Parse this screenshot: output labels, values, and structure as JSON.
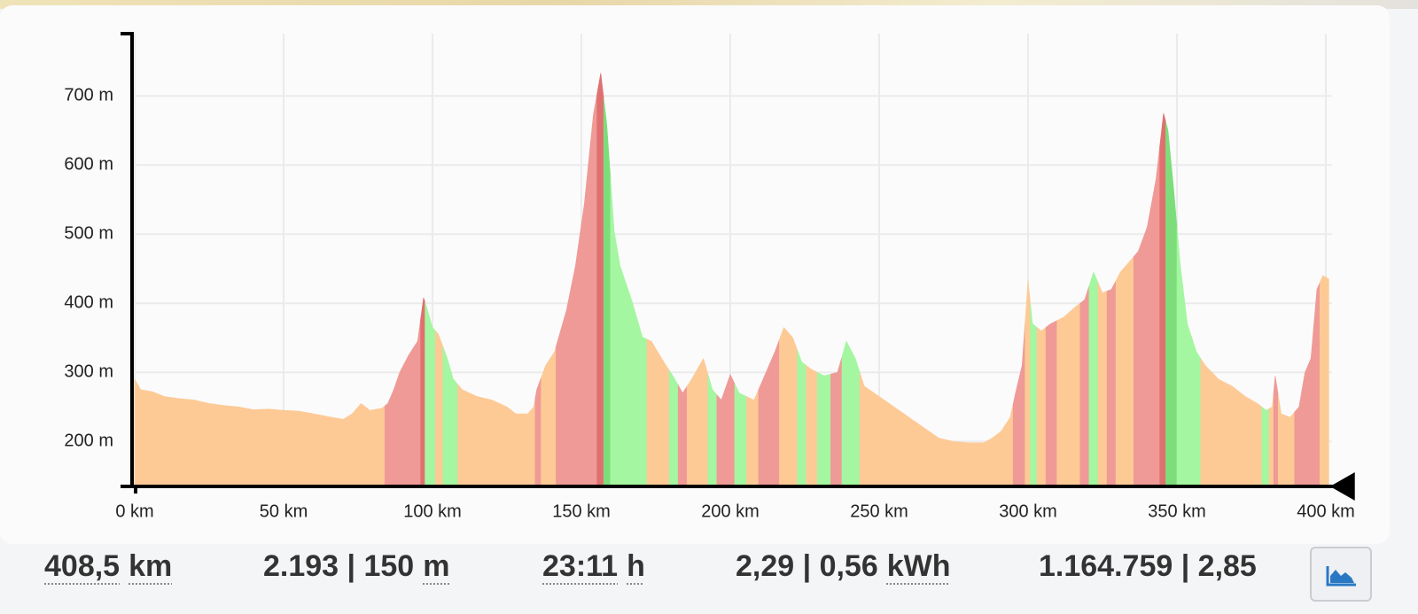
{
  "chart_data": {
    "type": "area",
    "x": [
      0,
      2,
      6,
      10,
      15,
      20,
      25,
      30,
      35,
      40,
      45,
      50,
      55,
      60,
      65,
      70,
      73,
      76,
      79,
      83,
      85,
      87,
      89,
      92,
      95,
      97,
      98,
      100,
      102,
      105,
      107,
      110,
      115,
      120,
      125,
      128,
      132,
      134,
      135,
      138,
      141,
      142,
      145,
      148,
      151,
      154,
      156.5,
      158.5,
      161,
      163,
      167,
      170.5,
      173.5,
      178,
      181,
      184,
      187,
      191,
      194,
      197,
      200,
      203,
      208,
      211,
      215,
      218,
      221,
      224,
      227,
      231.5,
      236,
      239,
      242,
      245,
      250,
      255,
      260,
      265,
      270,
      275,
      280,
      285,
      288,
      291,
      294,
      296,
      298,
      300,
      301.5,
      304.5,
      307.5,
      312,
      316,
      319,
      322,
      325,
      328,
      331,
      334,
      337,
      340,
      343,
      345.5,
      347,
      349,
      351,
      353.5,
      356.5,
      359.5,
      364,
      368.5,
      373,
      377,
      380,
      382,
      383,
      385,
      388,
      391,
      393,
      395,
      397,
      399,
      401
    ],
    "values": [
      290,
      275,
      272,
      265,
      262,
      260,
      255,
      252,
      250,
      246,
      247,
      245,
      244,
      240,
      236,
      232,
      240,
      255,
      245,
      248,
      255,
      275,
      300,
      325,
      345,
      408,
      395,
      365,
      355,
      320,
      290,
      275,
      265,
      260,
      250,
      240,
      240,
      250,
      275,
      310,
      330,
      345,
      390,
      454,
      544,
      672,
      733,
      660,
      505,
      454,
      403,
      351,
      345,
      313,
      293,
      270,
      290,
      320,
      275,
      260,
      297,
      270,
      260,
      290,
      330,
      365,
      350,
      315,
      305,
      295,
      300,
      345,
      320,
      280,
      265,
      250,
      235,
      220,
      205,
      200,
      198,
      198,
      205,
      215,
      235,
      274,
      310,
      433,
      370,
      360,
      370,
      380,
      395,
      405,
      445,
      415,
      420,
      445,
      460,
      475,
      510,
      580,
      675,
      650,
      560,
      460,
      370,
      330,
      310,
      290,
      280,
      265,
      255,
      245,
      250,
      295,
      240,
      235,
      250,
      300,
      320,
      420,
      440,
      435
    ],
    "colors": [
      "#fdca96",
      "#fdca96",
      "#fdca96",
      "#fdca96",
      "#fdca96",
      "#fdca96",
      "#fdca96",
      "#fdca96",
      "#fdca96",
      "#fdca96",
      "#fdca96",
      "#fdca96",
      "#fdca96",
      "#fdca96",
      "#fdca96",
      "#fdca96",
      "#fdca96",
      "#fdca96",
      "#fdca96",
      "#fdca96",
      "#ef9a96",
      "#ef9a96",
      "#ef9a96",
      "#ef9a96",
      "#ef9a96",
      "#e07070",
      "#a5f6a0",
      "#a5f6a0",
      "#fdca96",
      "#a5f6a0",
      "#a5f6a0",
      "#fdca96",
      "#fdca96",
      "#fdca96",
      "#fdca96",
      "#fdca96",
      "#fdca96",
      "#fdca96",
      "#ef9a96",
      "#fdca96",
      "#fdca96",
      "#ef9a96",
      "#ef9a96",
      "#ef9a96",
      "#ef9a96",
      "#ef9a96",
      "#e07070",
      "#7ddd7a",
      "#a5f6a0",
      "#a5f6a0",
      "#a5f6a0",
      "#a5f6a0",
      "#fdca96",
      "#fdca96",
      "#a5f6a0",
      "#ef9a96",
      "#fdca96",
      "#fdca96",
      "#a5f6a0",
      "#ef9a96",
      "#ef9a96",
      "#a5f6a0",
      "#fdca96",
      "#ef9a96",
      "#ef9a96",
      "#fdca96",
      "#fdca96",
      "#a5f6a0",
      "#fdca96",
      "#a5f6a0",
      "#ef9a96",
      "#a5f6a0",
      "#a5f6a0",
      "#fdca96",
      "#fdca96",
      "#fdca96",
      "#fdca96",
      "#fdca96",
      "#fdca96",
      "#fdca96",
      "#fdca96",
      "#fdca96",
      "#fdca96",
      "#fdca96",
      "#fdca96",
      "#ef9a96",
      "#ef9a96",
      "#fdca96",
      "#a5f6a0",
      "#fdca96",
      "#ef9a96",
      "#fdca96",
      "#fdca96",
      "#ef9a96",
      "#a5f6a0",
      "#fdca96",
      "#ef9a96",
      "#fdca96",
      "#fdca96",
      "#ef9a96",
      "#ef9a96",
      "#ef9a96",
      "#e07070",
      "#7ddd7a",
      "#7ddd7a",
      "#a5f6a0",
      "#a5f6a0",
      "#a5f6a0",
      "#fdca96",
      "#fdca96",
      "#fdca96",
      "#fdca96",
      "#fdca96",
      "#a5f6a0",
      "#fdca96",
      "#ef9a96",
      "#fdca96",
      "#fdca96",
      "#ef9a96",
      "#ef9a96",
      "#ef9a96",
      "#ef9a96",
      "#fdca96",
      "#fdca96"
    ],
    "xlim": [
      0,
      402
    ],
    "xticks": [
      {
        "value": 0,
        "label": "0 km"
      },
      {
        "value": 50,
        "label": "50 km"
      },
      {
        "value": 100,
        "label": "100 km"
      },
      {
        "value": 150,
        "label": "150 km"
      },
      {
        "value": 200,
        "label": "200 km"
      },
      {
        "value": 250,
        "label": "250 km"
      },
      {
        "value": 300,
        "label": "300 km"
      },
      {
        "value": 350,
        "label": "350 km"
      },
      {
        "value": 400,
        "label": "400 km"
      }
    ],
    "ylim": [
      135,
      790
    ],
    "yticks": [
      {
        "value": 200,
        "label": "200 m"
      },
      {
        "value": 300,
        "label": "300 m"
      },
      {
        "value": 400,
        "label": "400 m"
      },
      {
        "value": 500,
        "label": "500 m"
      },
      {
        "value": 600,
        "label": "600 m"
      },
      {
        "value": 700,
        "label": "700 m"
      }
    ],
    "grid": true
  },
  "stats": [
    {
      "value": "408,5",
      "unit": "km"
    },
    {
      "value": "2.193 | 150",
      "unit": "m"
    },
    {
      "value": "23:11",
      "unit": "h"
    },
    {
      "value": "2,29 | 0,56",
      "unit": "kWh"
    },
    {
      "value": "1.164.759 | 2,85"
    }
  ]
}
